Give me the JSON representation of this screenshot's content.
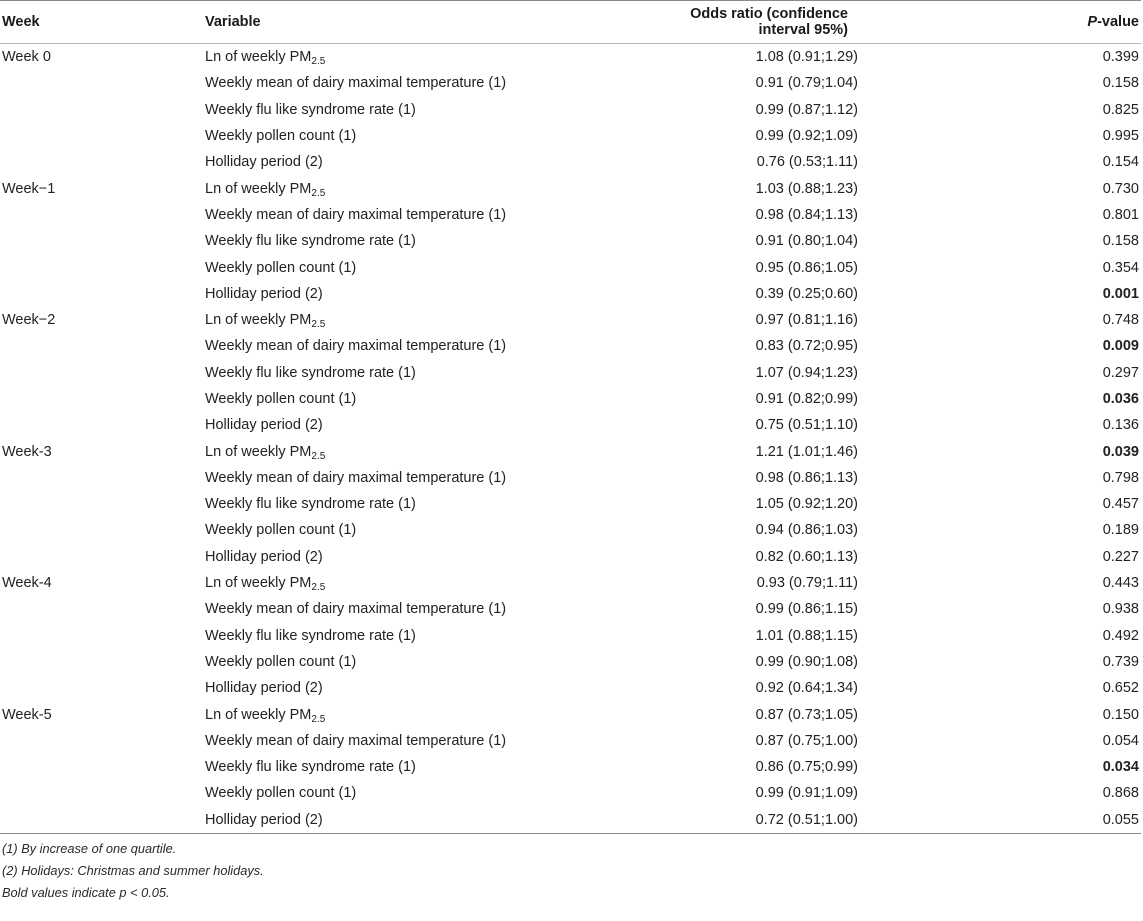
{
  "headers": {
    "week": "Week",
    "variable": "Variable",
    "odds_ratio": "Odds ratio (confidence interval 95%)",
    "p_value_italic": "P",
    "p_value_rest": "-value"
  },
  "groups": [
    {
      "week": "Week 0",
      "rows": [
        {
          "label": "Ln of weekly PM",
          "sub": "2.5",
          "or": "1.08 (0.91;1.29)",
          "p": "0.399",
          "bold": false
        },
        {
          "label": "Weekly mean of dairy maximal temperature (1)",
          "sub": "",
          "or": "0.91 (0.79;1.04)",
          "p": "0.158",
          "bold": false
        },
        {
          "label": "Weekly flu like syndrome rate (1)",
          "sub": "",
          "or": "0.99 (0.87;1.12)",
          "p": "0.825",
          "bold": false
        },
        {
          "label": "Weekly pollen count (1)",
          "sub": "",
          "or": "0.99 (0.92;1.09)",
          "p": "0.995",
          "bold": false
        },
        {
          "label": "Holliday period (2)",
          "sub": "",
          "or": "0.76 (0.53;1.11)",
          "p": "0.154",
          "bold": false
        }
      ]
    },
    {
      "week": "Week−1",
      "rows": [
        {
          "label": "Ln of weekly PM",
          "sub": "2.5",
          "or": "1.03 (0.88;1.23)",
          "p": "0.730",
          "bold": false
        },
        {
          "label": "Weekly mean of dairy maximal temperature (1)",
          "sub": "",
          "or": "0.98 (0.84;1.13)",
          "p": "0.801",
          "bold": false
        },
        {
          "label": "Weekly flu like syndrome rate (1)",
          "sub": "",
          "or": "0.91 (0.80;1.04)",
          "p": "0.158",
          "bold": false
        },
        {
          "label": "Weekly pollen count (1)",
          "sub": "",
          "or": "0.95 (0.86;1.05)",
          "p": "0.354",
          "bold": false
        },
        {
          "label": "Holliday period (2)",
          "sub": "",
          "or": "0.39 (0.25;0.60)",
          "p": "0.001",
          "bold": true
        }
      ]
    },
    {
      "week": "Week−2",
      "rows": [
        {
          "label": "Ln of weekly PM",
          "sub": "2.5",
          "or": "0.97 (0.81;1.16)",
          "p": "0.748",
          "bold": false
        },
        {
          "label": "Weekly mean of dairy maximal temperature (1)",
          "sub": "",
          "or": "0.83 (0.72;0.95)",
          "p": "0.009",
          "bold": true
        },
        {
          "label": "Weekly flu like syndrome rate (1)",
          "sub": "",
          "or": "1.07 (0.94;1.23)",
          "p": "0.297",
          "bold": false
        },
        {
          "label": "Weekly pollen count (1)",
          "sub": "",
          "or": "0.91 (0.82;0.99)",
          "p": "0.036",
          "bold": true
        },
        {
          "label": "Holliday period (2)",
          "sub": "",
          "or": "0.75 (0.51;1.10)",
          "p": "0.136",
          "bold": false
        }
      ]
    },
    {
      "week": "Week-3",
      "rows": [
        {
          "label": "Ln of weekly PM",
          "sub": "2.5",
          "or": "1.21 (1.01;1.46)",
          "p": "0.039",
          "bold": true
        },
        {
          "label": "Weekly mean of dairy maximal temperature (1)",
          "sub": "",
          "or": "0.98 (0.86;1.13)",
          "p": "0.798",
          "bold": false
        },
        {
          "label": "Weekly flu like syndrome rate (1)",
          "sub": "",
          "or": "1.05 (0.92;1.20)",
          "p": "0.457",
          "bold": false
        },
        {
          "label": "Weekly pollen count (1)",
          "sub": "",
          "or": "0.94 (0.86;1.03)",
          "p": "0.189",
          "bold": false
        },
        {
          "label": "Holliday period (2)",
          "sub": "",
          "or": "0.82 (0.60;1.13)",
          "p": "0.227",
          "bold": false
        }
      ]
    },
    {
      "week": "Week-4",
      "rows": [
        {
          "label": "Ln of weekly PM",
          "sub": "2.5",
          "or": "0.93 (0.79;1.11)",
          "p": "0.443",
          "bold": false
        },
        {
          "label": "Weekly mean of dairy maximal temperature (1)",
          "sub": "",
          "or": "0.99 (0.86;1.15)",
          "p": "0.938",
          "bold": false
        },
        {
          "label": "Weekly flu like syndrome rate (1)",
          "sub": "",
          "or": "1.01 (0.88;1.15)",
          "p": "0.492",
          "bold": false
        },
        {
          "label": "Weekly pollen count (1)",
          "sub": "",
          "or": "0.99 (0.90;1.08)",
          "p": "0.739",
          "bold": false
        },
        {
          "label": "Holliday period (2)",
          "sub": "",
          "or": "0.92 (0.64;1.34)",
          "p": "0.652",
          "bold": false
        }
      ]
    },
    {
      "week": "Week-5",
      "rows": [
        {
          "label": "Ln of weekly PM",
          "sub": "2.5",
          "or": "0.87 (0.73;1.05)",
          "p": "0.150",
          "bold": false
        },
        {
          "label": "Weekly mean of dairy maximal temperature (1)",
          "sub": "",
          "or": "0.87 (0.75;1.00)",
          "p": "0.054",
          "bold": false
        },
        {
          "label": "Weekly flu like syndrome rate (1)",
          "sub": "",
          "or": "0.86 (0.75;0.99)",
          "p": "0.034",
          "bold": true
        },
        {
          "label": "Weekly pollen count (1)",
          "sub": "",
          "or": "0.99 (0.91;1.09)",
          "p": "0.868",
          "bold": false
        },
        {
          "label": "Holliday period (2)",
          "sub": "",
          "or": "0.72 (0.51;1.00)",
          "p": "0.055",
          "bold": false
        }
      ]
    }
  ],
  "footnotes": [
    "(1) By increase of one quartile.",
    "(2) Holidays: Christmas and summer holidays.",
    "Bold values indicate p < 0.05."
  ]
}
